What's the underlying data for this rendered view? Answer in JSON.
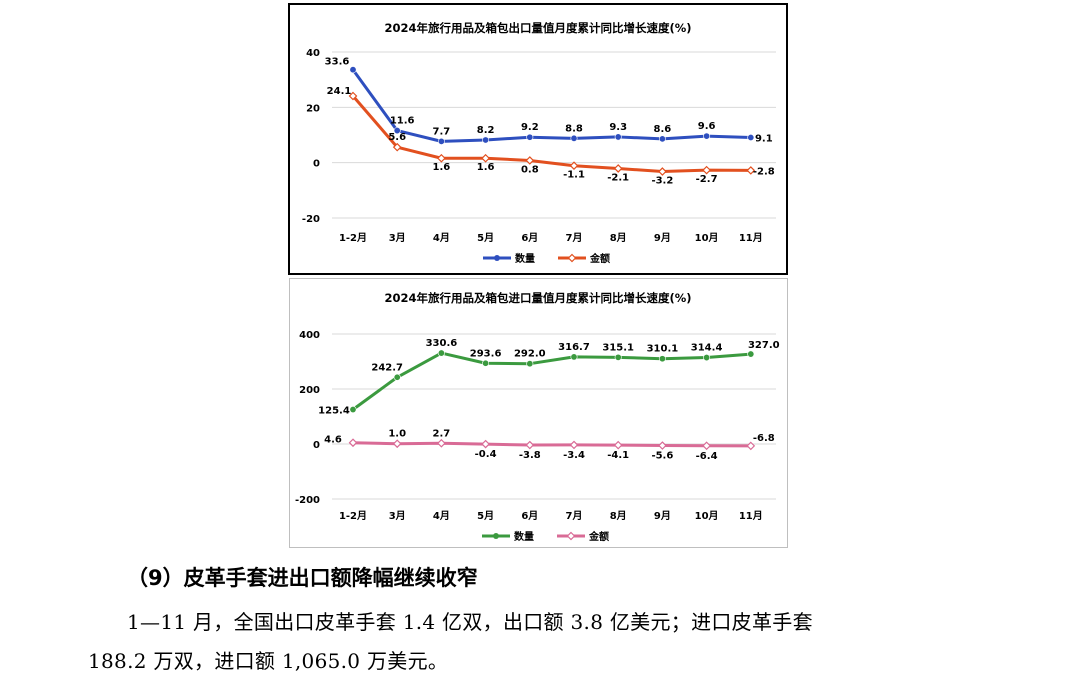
{
  "chart_data": [
    {
      "type": "line",
      "title": "2024年旅行用品及箱包出口量值月度累计同比增长速度(%)",
      "categories": [
        "1-2月",
        "3月",
        "4月",
        "5月",
        "6月",
        "7月",
        "8月",
        "9月",
        "10月",
        "11月"
      ],
      "ylim": [
        -20,
        40
      ],
      "yticks": [
        40,
        20,
        0,
        -20
      ],
      "grid": true,
      "legend_position": "bottom",
      "series": [
        {
          "name": "数量",
          "color": "#2e4fbf",
          "marker": "circle",
          "values": [
            33.6,
            11.6,
            7.7,
            8.2,
            9.2,
            8.8,
            9.3,
            8.6,
            9.6,
            9.1
          ],
          "labels": [
            "33.6",
            "11.6",
            "7.7",
            "8.2",
            "9.2",
            "8.8",
            "9.3",
            "8.6",
            "9.6",
            "9.1"
          ]
        },
        {
          "name": "金额",
          "color": "#e2501f",
          "marker": "diamond",
          "values": [
            24.1,
            5.6,
            1.6,
            1.6,
            0.8,
            -1.1,
            -2.1,
            -3.2,
            -2.7,
            -2.8
          ],
          "labels": [
            "24.1",
            "5.6",
            "1.6",
            "1.6",
            "0.8",
            "-1.1",
            "-2.1",
            "-3.2",
            "-2.7",
            "-2.8"
          ]
        }
      ]
    },
    {
      "type": "line",
      "title": "2024年旅行用品及箱包进口量值月度累计同比增长速度(%)",
      "categories": [
        "1-2月",
        "3月",
        "4月",
        "5月",
        "6月",
        "7月",
        "8月",
        "9月",
        "10月",
        "11月"
      ],
      "ylim": [
        -200,
        400
      ],
      "yticks": [
        400,
        200,
        0,
        -200
      ],
      "grid": true,
      "legend_position": "bottom",
      "series": [
        {
          "name": "数量",
          "color": "#3b9a3f",
          "marker": "circle",
          "values": [
            125.4,
            242.7,
            330.6,
            293.6,
            292.0,
            316.7,
            315.1,
            310.1,
            314.4,
            327.0
          ],
          "labels": [
            "125.4",
            "242.7",
            "330.6",
            "293.6",
            "292.0",
            "316.7",
            "315.1",
            "310.1",
            "314.4",
            "327.0"
          ]
        },
        {
          "name": "金额",
          "color": "#d96b96",
          "marker": "diamond",
          "values": [
            4.6,
            1.0,
            2.7,
            -0.4,
            -3.8,
            -3.4,
            -4.1,
            -5.6,
            -6.4,
            -6.8
          ],
          "labels": [
            "4.6",
            "1.0",
            "2.7",
            "-0.4",
            "-3.8",
            "-3.4",
            "-4.1",
            "-5.6",
            "-6.4",
            "-6.8"
          ]
        }
      ]
    }
  ],
  "section": {
    "heading": "（9）皮革手套进出口额降幅继续收窄",
    "line1": "1—11 月，全国出口皮革手套 1.4 亿双，出口额 3.8 亿美元；进口皮革手套",
    "line2": "188.2 万双，进口额 1,065.0 万美元。"
  }
}
